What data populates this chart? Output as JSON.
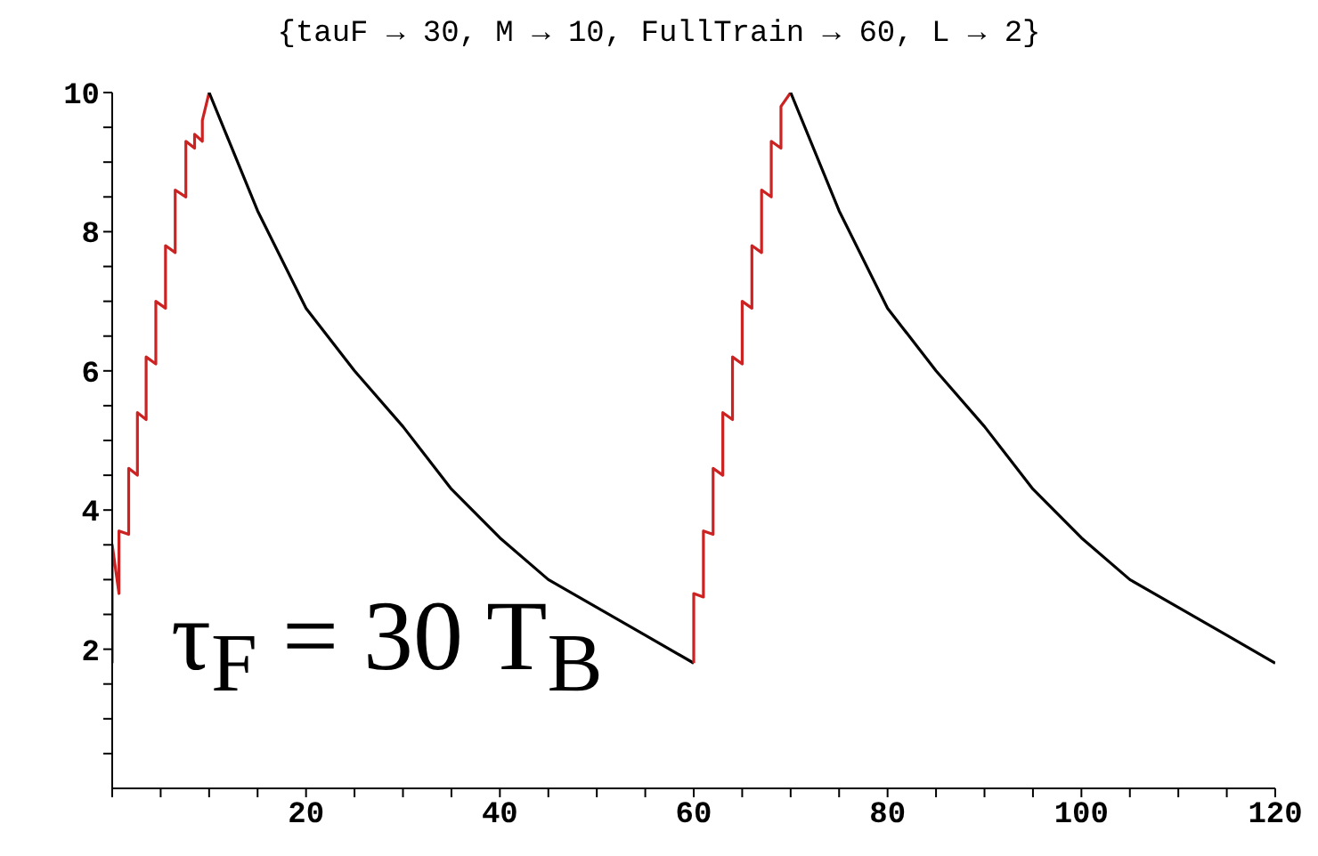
{
  "chart_data": {
    "type": "line",
    "title": "{tauF → 30, M → 10, FullTrain → 60, L → 2}",
    "annotations": [
      "τ$_{F}$ = 30 T$_{B}$"
    ],
    "xlim": [
      0,
      120
    ],
    "xticks": [
      {
        "value": 0,
        "label": null
      },
      {
        "value": 5,
        "label": null
      },
      {
        "value": 10,
        "label": null
      },
      {
        "value": 15,
        "label": null
      },
      20,
      {
        "value": 25,
        "label": null
      },
      {
        "value": 30,
        "label": null
      },
      {
        "value": 35,
        "label": null
      },
      40,
      {
        "value": 45,
        "label": null
      },
      {
        "value": 50,
        "label": null
      },
      {
        "value": 55,
        "label": null
      },
      60,
      {
        "value": 65,
        "label": null
      },
      {
        "value": 70,
        "label": null
      },
      {
        "value": 75,
        "label": null
      },
      80,
      {
        "value": 85,
        "label": null
      },
      {
        "value": 90,
        "label": null
      },
      {
        "value": 95,
        "label": null
      },
      100,
      {
        "value": 105,
        "label": null
      },
      {
        "value": 110,
        "label": null
      },
      {
        "value": 115,
        "label": null
      },
      120
    ],
    "ylim": [
      0,
      10
    ],
    "yticks": [
      {
        "value": 0.5,
        "label": null
      },
      {
        "value": 1,
        "label": null
      },
      {
        "value": 1.5,
        "label": null
      },
      2,
      {
        "value": 2.5,
        "label": null
      },
      {
        "value": 3,
        "label": null
      },
      {
        "value": 3.5,
        "label": null
      },
      4,
      {
        "value": 4.5,
        "label": null
      },
      {
        "value": 5,
        "label": null
      },
      {
        "value": 5.5,
        "label": null
      },
      6,
      {
        "value": 6.5,
        "label": null
      },
      {
        "value": 7,
        "label": null
      },
      {
        "value": 7.5,
        "label": null
      },
      8,
      {
        "value": 8.5,
        "label": null
      },
      {
        "value": 9,
        "label": null
      },
      {
        "value": 9.5,
        "label": null
      },
      10
    ],
    "grid": false,
    "marker": "none",
    "line_style": "solid",
    "series": [
      {
        "color": "#cc2222",
        "x": [
          0,
          0,
          0.7,
          0.7,
          1.7,
          1.7,
          2.6,
          2.6,
          3.5,
          3.5,
          4.5,
          4.5,
          5.5,
          5.5,
          6.5,
          6.5,
          7.6,
          7.6,
          8.5,
          8.5,
          9.3,
          9.3,
          10
        ],
        "values": [
          1.8,
          3.5,
          2.8,
          3.7,
          3.65,
          4.6,
          4.5,
          5.4,
          5.3,
          6.2,
          6.1,
          7.0,
          6.9,
          7.8,
          7.7,
          8.6,
          8.5,
          9.3,
          9.2,
          9.4,
          9.3,
          9.6,
          10
        ]
      },
      {
        "color": "#000000",
        "x": [
          10,
          15,
          20,
          25,
          30,
          35,
          40,
          45,
          50,
          55,
          60
        ],
        "values": [
          10,
          8.3,
          6.9,
          6.0,
          5.2,
          4.3,
          3.6,
          3.0,
          2.6,
          2.2,
          1.8
        ]
      },
      {
        "color": "#cc2222",
        "x": [
          60,
          60,
          61,
          61,
          62,
          62,
          63,
          63,
          64,
          64,
          65,
          65,
          66,
          66,
          67,
          67,
          68,
          68,
          69,
          69,
          70
        ],
        "values": [
          1.8,
          2.8,
          2.75,
          3.7,
          3.65,
          4.6,
          4.5,
          5.4,
          5.3,
          6.2,
          6.1,
          7.0,
          6.9,
          7.8,
          7.7,
          8.6,
          8.5,
          9.3,
          9.2,
          9.8,
          10
        ]
      },
      {
        "color": "#000000",
        "x": [
          70,
          75,
          80,
          85,
          90,
          95,
          100,
          105,
          110,
          115,
          120
        ],
        "values": [
          10,
          8.3,
          6.9,
          6.0,
          5.2,
          4.3,
          3.6,
          3.0,
          2.6,
          2.2,
          1.8
        ]
      }
    ]
  }
}
